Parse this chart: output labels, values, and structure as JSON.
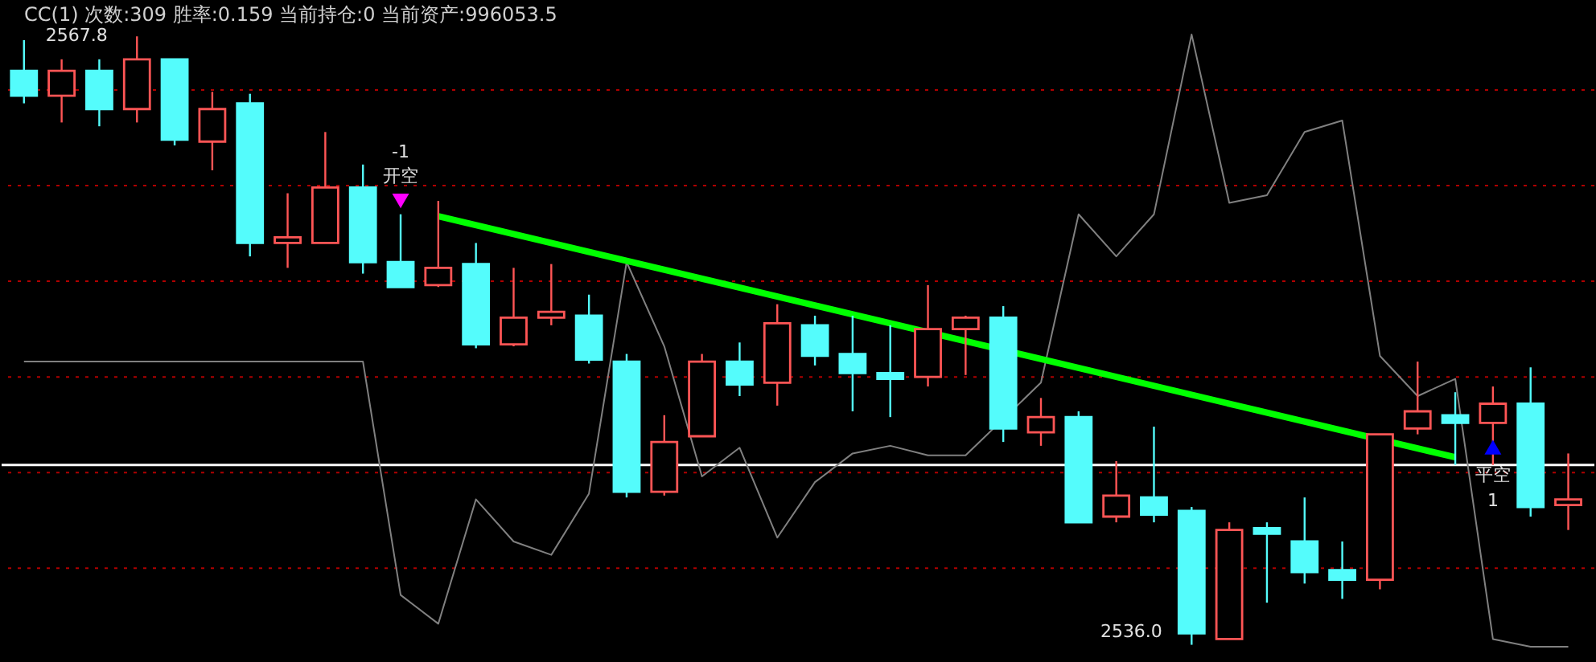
{
  "chart_data": {
    "type": "candlestick",
    "title": "CC(1) 次数:309 胜率:0.159 当前持仓:0 当前资产:996053.5",
    "categories": [
      null,
      null,
      null,
      null,
      null,
      null,
      null,
      null,
      null,
      null,
      null,
      null,
      null,
      null,
      null,
      null,
      null,
      null,
      null,
      null,
      null,
      null,
      null,
      null,
      null,
      null,
      null,
      null,
      null,
      null,
      null,
      null,
      null,
      null,
      null,
      null,
      null,
      null,
      null,
      null,
      null,
      null
    ],
    "ohlc": [
      [
        2566.0,
        2567.6,
        2564.3,
        2564.7
      ],
      [
        2564.7,
        2566.6,
        2563.3,
        2566.0
      ],
      [
        2566.0,
        2566.6,
        2563.1,
        2564.0
      ],
      [
        2564.0,
        2567.8,
        2563.3,
        2566.6
      ],
      [
        2566.6,
        2566.6,
        2562.1,
        2562.4
      ],
      [
        2562.3,
        2564.9,
        2560.8,
        2564.0
      ],
      [
        2564.3,
        2564.8,
        2556.3,
        2557.0
      ],
      [
        2557.0,
        2559.6,
        2555.7,
        2557.3
      ],
      [
        2557.0,
        2562.8,
        2557.0,
        2559.9
      ],
      [
        2559.9,
        2561.1,
        2555.4,
        2556.0
      ],
      [
        2556.0,
        2558.5,
        2554.7,
        2554.7
      ],
      [
        2554.8,
        2559.2,
        2554.7,
        2555.7
      ],
      [
        2555.9,
        2557.0,
        2551.5,
        2551.7
      ],
      [
        2551.7,
        2555.7,
        2551.6,
        2553.1
      ],
      [
        2553.1,
        2555.9,
        2552.7,
        2553.4
      ],
      [
        2553.2,
        2554.3,
        2550.7,
        2550.9
      ],
      [
        2550.8,
        2551.2,
        2543.7,
        2544.0
      ],
      [
        2544.0,
        2548.0,
        2543.8,
        2546.6
      ],
      [
        2546.9,
        2551.2,
        2546.9,
        2550.8
      ],
      [
        2550.8,
        2551.8,
        2549.0,
        2549.6
      ],
      [
        2549.7,
        2553.8,
        2548.5,
        2552.8
      ],
      [
        2552.7,
        2553.2,
        2550.6,
        2551.1
      ],
      [
        2551.2,
        2553.2,
        2548.2,
        2550.2
      ],
      [
        2550.2,
        2552.7,
        2547.9,
        2549.9
      ],
      [
        2550.0,
        2554.8,
        2549.5,
        2552.5
      ],
      [
        2552.5,
        2553.2,
        2550.1,
        2553.1
      ],
      [
        2553.1,
        2553.7,
        2546.6,
        2547.3
      ],
      [
        2547.1,
        2548.9,
        2546.4,
        2547.9
      ],
      [
        2547.9,
        2548.2,
        2542.4,
        2542.4
      ],
      [
        2542.7,
        2545.6,
        2542.4,
        2543.8
      ],
      [
        2543.7,
        2547.4,
        2542.4,
        2542.8
      ],
      [
        2543.0,
        2543.2,
        2536.0,
        2536.6
      ],
      [
        2536.3,
        2542.4,
        2536.3,
        2542.0
      ],
      [
        2542.1,
        2542.4,
        2538.2,
        2541.8
      ],
      [
        2541.4,
        2543.7,
        2539.2,
        2539.8
      ],
      [
        2539.9,
        2541.4,
        2538.4,
        2539.4
      ],
      [
        2539.4,
        2547.0,
        2538.9,
        2547.0
      ],
      [
        2547.3,
        2550.8,
        2547.0,
        2548.2
      ],
      [
        2548.0,
        2549.2,
        2545.4,
        2547.6
      ],
      [
        2547.6,
        2549.5,
        2545.4,
        2548.6
      ],
      [
        2548.6,
        2550.5,
        2542.7,
        2543.2
      ],
      [
        2543.3,
        2546.0,
        2542.0,
        2543.6
      ]
    ],
    "colors": [
      "#54fcfc",
      "#ff5555",
      "#54fcfc",
      "#ff5555",
      "#54fcfc",
      "#ff5555",
      "#54fcfc",
      "#ff5555",
      "#ff5555",
      "#54fcfc",
      "#54fcfc",
      "#ff5555",
      "#54fcfc",
      "#ff5555",
      "#ff5555",
      "#54fcfc",
      "#54fcfc",
      "#ff5555",
      "#ff5555",
      "#54fcfc",
      "#ff5555",
      "#54fcfc",
      "#54fcfc",
      "#54fcfc",
      "#ff5555",
      "#ff5555",
      "#54fcfc",
      "#ff5555",
      "#54fcfc",
      "#ff5555",
      "#54fcfc",
      "#54fcfc",
      "#ff5555",
      "#54fcfc",
      "#54fcfc",
      "#54fcfc",
      "#ff5555",
      "#ff5555",
      "#54fcfc",
      "#ff5555",
      "#54fcfc",
      "#ff5555"
    ],
    "series": [
      {
        "type": "line",
        "color": "#808080",
        "values": [
          2550.8,
          2550.8,
          2550.8,
          2550.8,
          2550.8,
          2550.8,
          2550.8,
          2550.8,
          2550.8,
          2550.8,
          2538.6,
          2537.1,
          2543.6,
          2541.4,
          2540.7,
          2543.9,
          2556.0,
          2551.6,
          2544.8,
          2546.3,
          2541.6,
          2544.5,
          2546.0,
          2546.4,
          2545.9,
          2545.9,
          null,
          2549.7,
          2558.5,
          2556.3,
          2558.5,
          2567.9,
          2559.1,
          2559.5,
          2562.8,
          2563.4,
          2551.1,
          2549.0,
          2549.9,
          2536.3,
          2535.9,
          2535.9
        ]
      },
      {
        "type": "line",
        "color": "#00ff00",
        "values": [
          null,
          null,
          null,
          null,
          null,
          null,
          null,
          null,
          null,
          null,
          null,
          2558.4,
          null,
          null,
          null,
          null,
          null,
          null,
          null,
          null,
          null,
          null,
          null,
          null,
          null,
          null,
          null,
          null,
          null,
          null,
          null,
          null,
          null,
          null,
          null,
          null,
          null,
          null,
          2545.8,
          null,
          null,
          null
        ]
      },
      {
        "type": "scatter",
        "color": "#ff00ff",
        "marker": "triangle-down",
        "values": [
          null,
          null,
          null,
          null,
          null,
          null,
          null,
          null,
          null,
          null,
          2559.2,
          null,
          null,
          null,
          null,
          null,
          null,
          null,
          null,
          null,
          null,
          null,
          null,
          null,
          null,
          null,
          null,
          null,
          null,
          null,
          null,
          null,
          null,
          null,
          null,
          null,
          null,
          null,
          null,
          null,
          null,
          null
        ]
      },
      {
        "type": "scatter",
        "color": "#0000ff",
        "marker": "triangle",
        "values": [
          null,
          null,
          null,
          null,
          null,
          null,
          null,
          null,
          null,
          null,
          null,
          null,
          null,
          null,
          null,
          null,
          null,
          null,
          null,
          null,
          null,
          null,
          null,
          null,
          null,
          null,
          null,
          null,
          null,
          null,
          null,
          null,
          null,
          null,
          null,
          null,
          null,
          null,
          null,
          2546.2,
          null,
          null
        ]
      }
    ],
    "ylim": [
      2535.1,
      2569.7
    ],
    "yticks": [
      {
        "value": 2540,
        "label": null
      },
      {
        "value": 2545,
        "label": null
      },
      {
        "value": 2550,
        "label": null
      },
      {
        "value": 2555,
        "label": null
      },
      {
        "value": 2560,
        "label": null
      },
      {
        "value": 2565,
        "label": null
      }
    ],
    "grid": "y",
    "ref_lines": [
      {
        "axis": "y",
        "value": 2545.4,
        "color": "#ffffff"
      }
    ],
    "annotations": [
      "2567.8",
      "2536.0",
      "-1",
      "开空",
      "平空",
      "1"
    ]
  }
}
